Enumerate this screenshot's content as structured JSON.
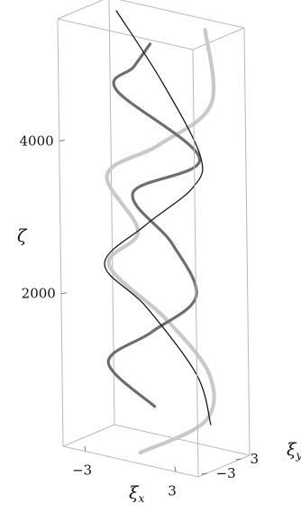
{
  "chart_data": {
    "type": "line",
    "style": "3d-helix",
    "title": "",
    "axes": {
      "x": {
        "label": "ξ",
        "sub": "x",
        "ticks": [
          -3,
          3
        ],
        "range": [
          -4.5,
          4.5
        ]
      },
      "y": {
        "label": "ξ",
        "sub": "y",
        "ticks": [
          3,
          -3
        ],
        "range": [
          -4.5,
          4.5
        ]
      },
      "z": {
        "label": "ζ",
        "ticks": [
          2000,
          4000
        ],
        "range": [
          0,
          5600
        ]
      }
    },
    "grid": false,
    "legend": "none",
    "series": [
      {
        "style": "thin-black",
        "color": "#1a1a1a",
        "points": [
          {
            "zeta": 550,
            "x": 4.0,
            "y": -0.9
          },
          {
            "zeta": 1100,
            "x": 2.6,
            "y": 0.4
          },
          {
            "zeta": 1800,
            "x": -1.0,
            "y": 1.2
          },
          {
            "zeta": 2300,
            "x": -3.3,
            "y": 0.0
          },
          {
            "zeta": 3000,
            "x": 0.0,
            "y": -1.4
          },
          {
            "zeta": 3600,
            "x": 2.9,
            "y": -0.6
          },
          {
            "zeta": 4000,
            "x": 3.1,
            "y": 0.2
          },
          {
            "zeta": 4800,
            "x": 0.2,
            "y": 1.3
          },
          {
            "zeta": 5600,
            "x": -2.8,
            "y": 1.3
          }
        ]
      },
      {
        "style": "thick-dark-gray",
        "color": "#6e6e6e",
        "points": [
          {
            "zeta": 650,
            "x": 0.5,
            "y": -1.5
          },
          {
            "zeta": 1050,
            "x": -2.9,
            "y": -0.6
          },
          {
            "zeta": 1600,
            "x": 0.2,
            "y": -1.0
          },
          {
            "zeta": 2100,
            "x": 2.4,
            "y": 1.0
          },
          {
            "zeta": 2700,
            "x": 0.7,
            "y": 1.4
          },
          {
            "zeta": 3300,
            "x": -1.5,
            "y": 0.4
          },
          {
            "zeta": 3900,
            "x": 2.6,
            "y": 1.4
          },
          {
            "zeta": 4600,
            "x": -2.5,
            "y": 0.4
          },
          {
            "zeta": 5000,
            "x": -1.0,
            "y": -0.5
          },
          {
            "zeta": 5400,
            "x": 0.5,
            "y": -1.5
          }
        ]
      },
      {
        "style": "thick-light-gray",
        "color": "#c9c9c9",
        "points": [
          {
            "zeta": 0,
            "x": -0.5,
            "y": -1.5
          },
          {
            "zeta": 500,
            "x": 3.0,
            "y": 0.8
          },
          {
            "zeta": 1100,
            "x": 3.1,
            "y": 1.3
          },
          {
            "zeta": 1700,
            "x": 0.3,
            "y": 1.2
          },
          {
            "zeta": 2300,
            "x": -3.0,
            "y": 0.0
          },
          {
            "zeta": 2900,
            "x": -0.5,
            "y": -1.4
          },
          {
            "zeta": 3500,
            "x": -2.9,
            "y": -0.4
          },
          {
            "zeta": 4100,
            "x": 1.0,
            "y": -1.5
          },
          {
            "zeta": 4700,
            "x": 3.8,
            "y": 0.4
          },
          {
            "zeta": 5600,
            "x": 3.0,
            "y": 1.6
          }
        ]
      }
    ]
  }
}
